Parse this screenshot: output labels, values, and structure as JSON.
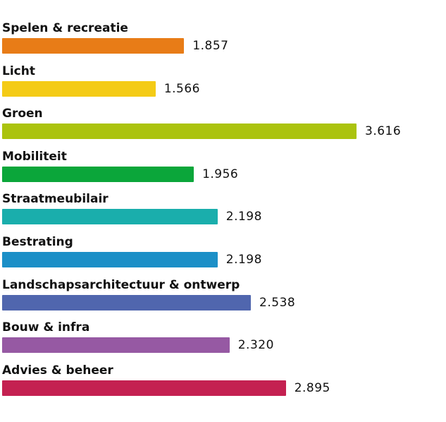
{
  "chart_data": {
    "type": "bar",
    "orientation": "horizontal",
    "categories": [
      "Spelen & recreatie",
      "Licht",
      "Groen",
      "Mobiliteit",
      "Straatmeubilair",
      "Bestrating",
      "Landschapsarchitectuur & ontwerp",
      "Bouw & infra",
      "Advies & beheer"
    ],
    "values": [
      1857,
      1566,
      3616,
      1956,
      2198,
      2198,
      2538,
      2320,
      2895
    ],
    "value_labels": [
      "1.857",
      "1.566",
      "3.616",
      "1.956",
      "2.198",
      "2.198",
      "2.538",
      "2.320",
      "2.895"
    ],
    "colors": [
      "#e87c17",
      "#f4cb16",
      "#abc30e",
      "#0ba63a",
      "#1aaeac",
      "#1b8fc7",
      "#5066ae",
      "#9659a3",
      "#c42151"
    ],
    "title": "",
    "xlabel": "",
    "ylabel": "",
    "grid": false,
    "legend": "none"
  }
}
